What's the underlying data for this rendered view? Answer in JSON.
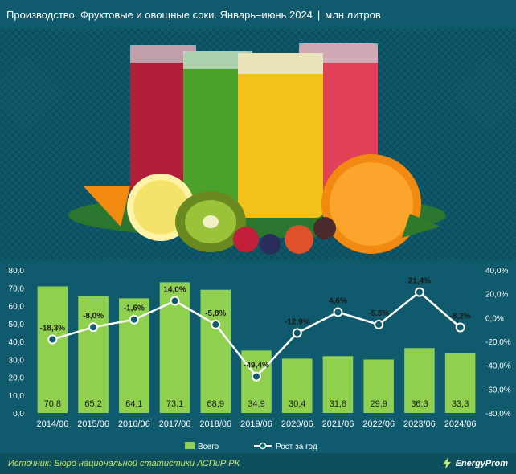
{
  "header": {
    "title": "Производство. Фруктовые и овощные соки. Январь–июнь 2024",
    "separator": "|",
    "unit": "млн литров"
  },
  "footer": {
    "source": "Источник: Бюро национальной статистики АСПиР РК",
    "brand": "EnergyProm"
  },
  "chart_data": {
    "type": "bar",
    "categories": [
      "2014/06",
      "2015/06",
      "2016/06",
      "2017/06",
      "2018/06",
      "2019/06",
      "2020/06",
      "2021/06",
      "2022/06",
      "2023/06",
      "2024/06"
    ],
    "series": [
      {
        "name": "Всего",
        "type": "bar",
        "axis": "left",
        "values": [
          70.8,
          65.2,
          64.1,
          73.1,
          68.9,
          34.9,
          30.4,
          31.8,
          29.9,
          36.3,
          33.3
        ],
        "labels": [
          "70,8",
          "65,2",
          "64,1",
          "73,1",
          "68,9",
          "34,9",
          "30,4",
          "31,8",
          "29,9",
          "36,3",
          "33,3"
        ]
      },
      {
        "name": "Рост за год",
        "type": "line",
        "axis": "right",
        "values": [
          -18.3,
          -8.0,
          -1.6,
          14.0,
          -5.8,
          -49.4,
          -12.9,
          4.6,
          -5.8,
          21.4,
          -8.2
        ],
        "labels": [
          "-18,3%",
          "-8,0%",
          "-1,6%",
          "14,0%",
          "-5,8%",
          "-49,4%",
          "-12,9%",
          "4,6%",
          "-5,8%",
          "21,4%",
          "-8,2%"
        ]
      }
    ],
    "ylim_left": [
      0,
      80
    ],
    "ylim_right": [
      -80,
      40
    ],
    "left_ticks": [
      "0,0",
      "10,0",
      "20,0",
      "30,0",
      "40,0",
      "50,0",
      "60,0",
      "70,0",
      "80,0"
    ],
    "right_ticks": [
      "-80,0%",
      "-60,0%",
      "-40,0%",
      "-20,0%",
      "0,0%",
      "20,0%",
      "40,0%"
    ],
    "legend_position": "bottom",
    "colors": {
      "bar": "#8fd14f",
      "line": "#ffffff",
      "text": "#ffffff",
      "bar_label": "#1a1a1a"
    }
  }
}
